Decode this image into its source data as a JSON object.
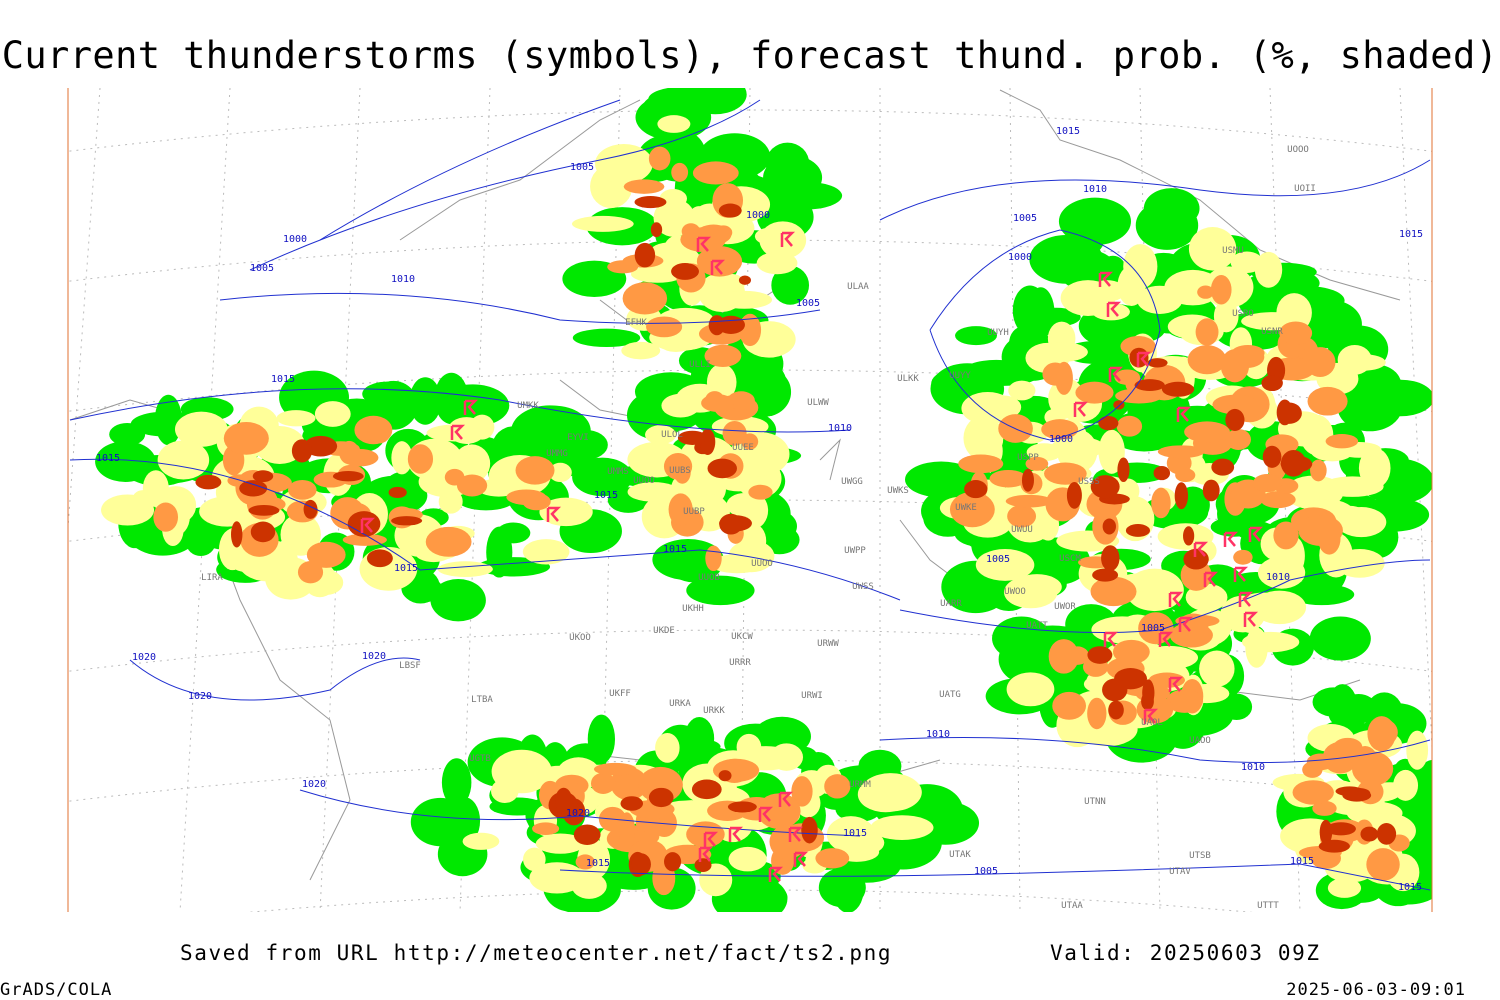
{
  "title": "Current thunderstorms (symbols), forecast thund. prob. (%, shaded)",
  "footer": {
    "source": "Saved from URL http://meteocenter.net/fact/ts2.png",
    "valid": "Valid: 20250603 09Z",
    "software": "GrADS/COLA",
    "timestamp": "2025-06-03-09:01"
  },
  "isobar_labels": [
    "1005",
    "1000",
    "1005",
    "1010",
    "1015",
    "1015",
    "1000",
    "1005",
    "1015",
    "1010",
    "1005",
    "1000",
    "1015",
    "1010",
    "1000",
    "1015",
    "1015",
    "1015",
    "1005",
    "1010",
    "1005",
    "1020",
    "1020",
    "1020",
    "1010",
    "1010",
    "1020",
    "1020",
    "1015",
    "1015",
    "1005",
    "1015",
    "1015"
  ],
  "stations": [
    "ULAA",
    "EFHK",
    "ULLI",
    "ULKK",
    "UUYY",
    "UUYH",
    "ULWW",
    "UMKK",
    "EYVI",
    "UMMG",
    "UMMS",
    "UUOO",
    "UUBS",
    "ULOL",
    "UUEE",
    "UWGG",
    "UWKS",
    "UWKE",
    "UWUU",
    "UUBP",
    "UWPP",
    "UUOO",
    "UUOB",
    "UWSS",
    "UWOO",
    "UWOR",
    "UATT",
    "UARR",
    "USCM",
    "USSS",
    "UKHH",
    "UKDE",
    "UKOO",
    "UKCW",
    "URWW",
    "URRR",
    "URWI",
    "UKFF",
    "URKA",
    "URKK",
    "UGTB",
    "URMM",
    "UTTT",
    "UTAK",
    "UATG",
    "UAOL",
    "UAOO",
    "UTNN",
    "UTSB",
    "UTAV",
    "UTAA",
    "UOOO",
    "UOII",
    "USMU",
    "USRO",
    "USNR",
    "USPP",
    "LIRA",
    "LBSF",
    "LTBA"
  ]
}
